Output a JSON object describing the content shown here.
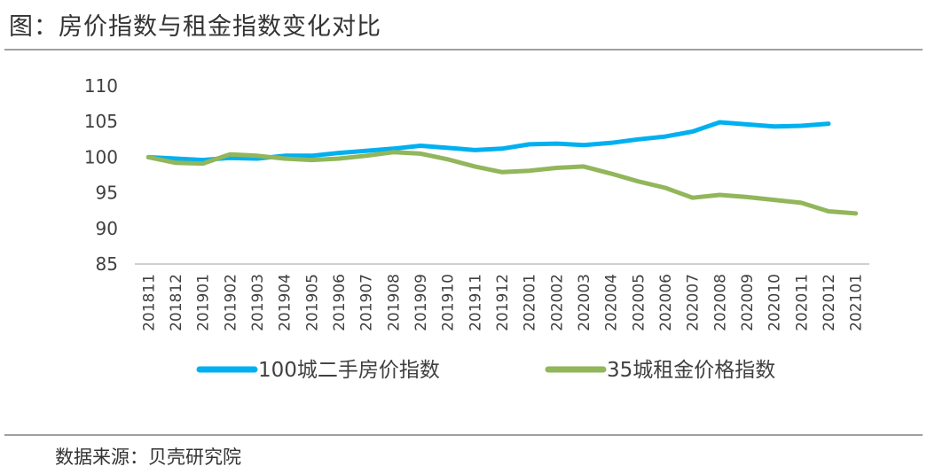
{
  "title": "图：房价指数与租金指数变化对比",
  "source": "数据来源：贝壳研究院",
  "chart_data": {
    "type": "line",
    "categories": [
      "201811",
      "201812",
      "201901",
      "201902",
      "201903",
      "201904",
      "201905",
      "201906",
      "201907",
      "201908",
      "201909",
      "201910",
      "201911",
      "201912",
      "202001",
      "202002",
      "202003",
      "202004",
      "202005",
      "202006",
      "202007",
      "202008",
      "202009",
      "202010",
      "202011",
      "202012",
      "202101"
    ],
    "series": [
      {
        "name": "100城二手房价指数",
        "color": "#00b0f0",
        "values": [
          100,
          99.8,
          99.6,
          99.9,
          99.8,
          100.2,
          100.2,
          100.6,
          100.9,
          101.2,
          101.6,
          101.3,
          101.0,
          101.2,
          101.8,
          101.9,
          101.7,
          102.0,
          102.5,
          102.9,
          103.6,
          104.9,
          104.6,
          104.3,
          104.4,
          104.7,
          null
        ]
      },
      {
        "name": "35城租金价格指数",
        "color": "#92b65a",
        "values": [
          100,
          99.2,
          99.1,
          100.4,
          100.2,
          99.8,
          99.6,
          99.8,
          100.2,
          100.7,
          100.5,
          99.7,
          98.7,
          97.9,
          98.1,
          98.5,
          98.7,
          97.7,
          96.6,
          95.7,
          94.3,
          94.7,
          94.4,
          94.0,
          93.6,
          92.4,
          92.1
        ]
      }
    ],
    "ylim": [
      85,
      110
    ],
    "yticks": [
      85,
      90,
      95,
      100,
      105,
      110
    ],
    "legend": "bottom",
    "grid": false
  }
}
